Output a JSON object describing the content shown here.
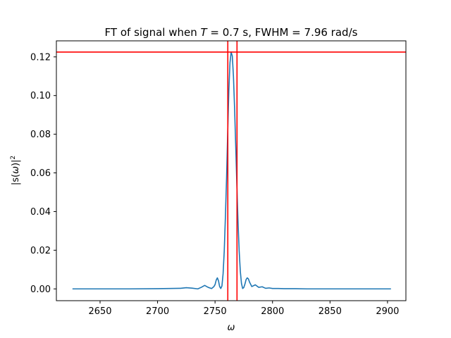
{
  "chart_data": {
    "type": "line",
    "title_parts": {
      "prefix": "FT of signal when ",
      "var": "T",
      "mid": " = 0.7 s, FWHM = 7.96 rad/s"
    },
    "xlabel": "ω",
    "ylabel_parts": {
      "open": "|s(",
      "var": "ω",
      "close": ")|",
      "sup": "2"
    },
    "xlim": [
      2612,
      2916
    ],
    "ylim": [
      -0.0061,
      0.1283
    ],
    "xticks": [
      2650,
      2700,
      2750,
      2800,
      2850,
      2900
    ],
    "yticks": [
      0.0,
      0.02,
      0.04,
      0.06,
      0.08,
      0.1,
      0.12
    ],
    "ytick_labels": [
      "0.00",
      "0.02",
      "0.04",
      "0.06",
      "0.08",
      "0.10",
      "0.12"
    ],
    "grid": false,
    "series": [
      {
        "color": "#1f77b4",
        "x": [
          2626,
          2650,
          2675,
          2700,
          2710,
          2720,
          2725,
          2730,
          2735,
          2738,
          2741,
          2744,
          2747,
          2749,
          2750,
          2751,
          2752,
          2753,
          2754,
          2755,
          2756,
          2757,
          2758,
          2759,
          2760,
          2761,
          2762,
          2763,
          2764,
          2765,
          2766,
          2767,
          2768,
          2769,
          2770,
          2771,
          2772,
          2773,
          2774,
          2775,
          2776,
          2777,
          2778,
          2779,
          2780,
          2782,
          2785,
          2788,
          2791,
          2794,
          2797,
          2800,
          2805,
          2810,
          2820,
          2830,
          2850,
          2875,
          2903
        ],
        "y": [
          0.0,
          0.0,
          0.0,
          0.0001,
          0.0002,
          0.0003,
          0.0006,
          0.0004,
          0.0,
          0.0008,
          0.0018,
          0.0008,
          0.0002,
          0.0012,
          0.0022,
          0.0045,
          0.0057,
          0.0042,
          0.0012,
          0.0002,
          0.0015,
          0.0078,
          0.0195,
          0.037,
          0.057,
          0.081,
          0.1025,
          0.117,
          0.1225,
          0.1205,
          0.11,
          0.0935,
          0.0735,
          0.053,
          0.0345,
          0.0195,
          0.009,
          0.0028,
          0.0002,
          0.0007,
          0.0025,
          0.0048,
          0.0057,
          0.0052,
          0.0035,
          0.0012,
          0.0021,
          0.0008,
          0.0011,
          0.0003,
          0.0005,
          0.0002,
          0.0002,
          0.0001,
          0.0001,
          0.0,
          0.0,
          0.0,
          0.0
        ]
      }
    ],
    "reference_lines": {
      "color": "#ff0000",
      "vertical_x": [
        2761.1,
        2769.1
      ],
      "horizontal_y": [
        0.1225
      ]
    }
  }
}
